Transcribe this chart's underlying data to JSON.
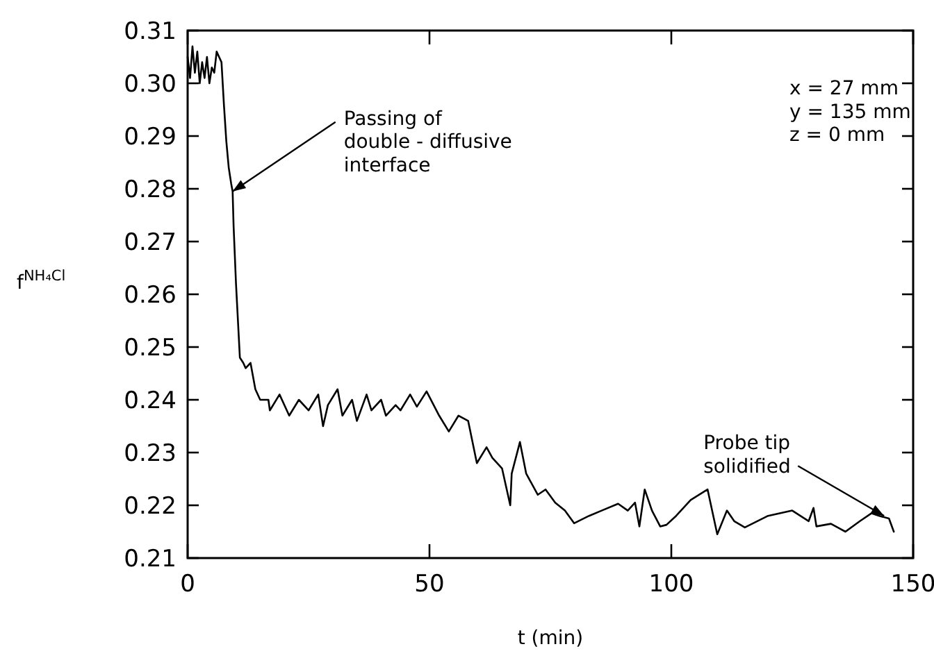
{
  "chart_data": {
    "type": "line",
    "xlabel": "t (min)",
    "ylabel": "f$^{NH₄Cl}$",
    "xlim": [
      0,
      150
    ],
    "xticks": [
      0,
      50,
      100,
      150
    ],
    "ylim": [
      0.21,
      0.31
    ],
    "yticks": [
      0.21,
      0.22,
      0.23,
      0.24,
      0.25,
      0.26,
      0.27,
      0.28,
      0.29,
      {
        "value": 0.3,
        "label": "0.30"
      },
      0.31
    ],
    "grid": false,
    "marker": "none",
    "line_style": "solid",
    "series": [
      {
        "color": "#000000",
        "x": [
          0,
          0.5,
          1,
          1.5,
          2,
          2.5,
          3,
          3.5,
          4,
          4.5,
          5,
          5.5,
          6,
          6.5,
          7,
          7.5,
          8,
          8.5,
          9,
          9.3,
          9.5,
          10,
          10.8,
          11.5,
          12,
          13,
          14,
          15,
          16.7,
          17,
          19,
          21,
          23,
          25,
          27,
          28,
          29,
          31,
          32,
          34,
          35,
          37,
          38,
          40,
          41,
          43,
          44,
          46,
          47.4,
          49.4,
          52,
          54,
          56,
          58,
          59.8,
          61.8,
          63,
          65,
          66.7,
          67,
          68.7,
          70,
          72.4,
          74,
          76,
          78,
          79.9,
          83,
          85.6,
          89,
          91,
          92.5,
          93.4,
          94.5,
          96,
          97.7,
          99,
          101,
          104,
          107.5,
          109.5,
          111.5,
          113,
          115.2,
          120,
          125,
          128.4,
          129.4,
          130,
          133,
          136,
          139,
          141.4,
          143,
          145,
          146
        ],
        "values": [
          0.305,
          0.301,
          0.307,
          0.302,
          0.306,
          0.3,
          0.304,
          0.301,
          0.305,
          0.3,
          0.303,
          0.302,
          0.306,
          0.305,
          0.304,
          0.296,
          0.289,
          0.284,
          0.281,
          0.2795,
          0.273,
          0.262,
          0.248,
          0.247,
          0.246,
          0.247,
          0.242,
          0.24,
          0.24,
          0.238,
          0.241,
          0.237,
          0.24,
          0.238,
          0.241,
          0.235,
          0.239,
          0.242,
          0.237,
          0.24,
          0.236,
          0.241,
          0.238,
          0.24,
          0.237,
          0.239,
          0.238,
          0.241,
          0.2387,
          0.2416,
          0.237,
          0.234,
          0.237,
          0.236,
          0.228,
          0.231,
          0.229,
          0.227,
          0.22,
          0.226,
          0.232,
          0.226,
          0.222,
          0.223,
          0.2205,
          0.219,
          0.2166,
          0.218,
          0.219,
          0.2203,
          0.219,
          0.2205,
          0.216,
          0.223,
          0.219,
          0.216,
          0.2163,
          0.218,
          0.221,
          0.223,
          0.2145,
          0.219,
          0.217,
          0.2158,
          0.218,
          0.219,
          0.217,
          0.2195,
          0.216,
          0.2165,
          0.215,
          0.217,
          0.2185,
          0.218,
          0.2175,
          0.215
        ]
      }
    ],
    "annotations": [
      {
        "text": "Passing of\ndouble - diffusive\ninterface",
        "x": 9.3,
        "y": 0.2795
      },
      {
        "text": "Probe tip\nsolidified",
        "x": 144,
        "y": 0.218
      },
      "x = 27 mm\ny = 135 mm\nz = 0 mm"
    ]
  }
}
